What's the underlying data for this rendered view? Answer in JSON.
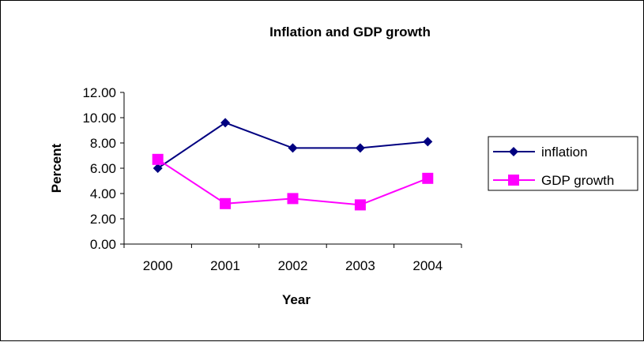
{
  "chart_data": {
    "type": "line",
    "title": "Inflation and GDP growth",
    "xlabel": "Year",
    "ylabel": "Percent",
    "categories": [
      "2000",
      "2001",
      "2002",
      "2003",
      "2004"
    ],
    "y_ticks": [
      "0.00",
      "2.00",
      "4.00",
      "6.00",
      "8.00",
      "10.00",
      "12.00"
    ],
    "ylim": [
      0,
      12
    ],
    "grid": false,
    "legend_position": "right",
    "series": [
      {
        "name": "inflation",
        "values": [
          6.0,
          9.6,
          7.6,
          7.6,
          8.1
        ],
        "color": "#000080",
        "marker": "diamond"
      },
      {
        "name": "GDP growth",
        "values": [
          6.7,
          3.2,
          3.6,
          3.1,
          5.2
        ],
        "color": "#FF00FF",
        "marker": "square"
      }
    ]
  }
}
